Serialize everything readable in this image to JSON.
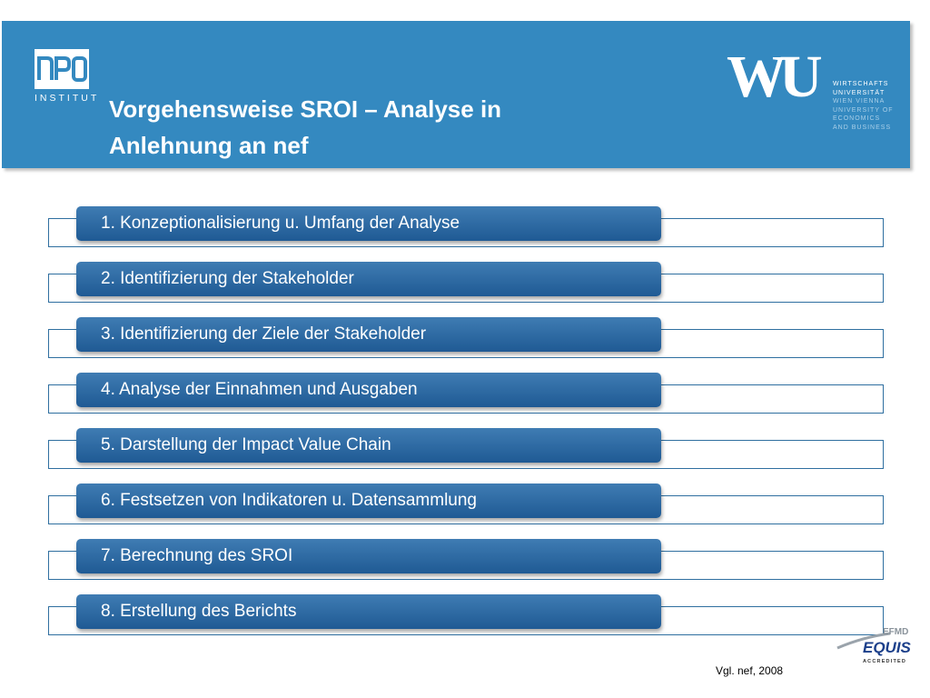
{
  "header": {
    "title": "Vorgehensweise SROI – Analyse in Anlehnung an nef",
    "npo_logo": {
      "mark": "NPO",
      "text": "INSTITUT"
    },
    "wu_logo": {
      "mark": "WU",
      "lines": [
        "WIRTSCHAFTS",
        "UNIVERSITÄT",
        "WIEN VIENNA",
        "UNIVERSITY OF",
        "ECONOMICS",
        "AND BUSINESS"
      ]
    },
    "color": "#3489c0"
  },
  "steps": [
    "1. Konzeptionalisierung u. Umfang der Analyse",
    "2. Identifizierung der Stakeholder",
    "3. Identifizierung der Ziele der Stakeholder",
    "4. Analyse der Einnahmen und Ausgaben",
    "5. Darstellung der Impact Value Chain",
    "6. Festsetzen von Indikatoren u. Datensammlung",
    "7. Berechnung des SROI",
    "8. Erstellung des Berichts"
  ],
  "equis": {
    "fmd": "EFMD",
    "name": "EQUIS",
    "sub": "ACCREDITED"
  },
  "footnote": "Vgl. nef, 2008",
  "colors": {
    "bar": "#2b6aa3",
    "outline": "#2f6fa0"
  }
}
